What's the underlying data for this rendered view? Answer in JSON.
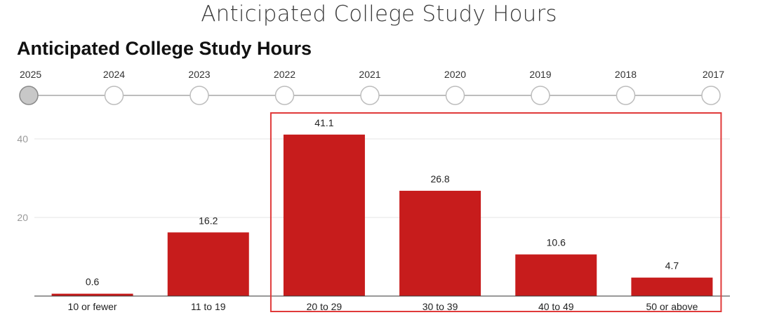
{
  "page_title": "Anticipated College Study Hours",
  "chart_title": "Anticipated College Study Hours",
  "timeline": {
    "years": [
      "2025",
      "2024",
      "2023",
      "2022",
      "2021",
      "2020",
      "2019",
      "2018",
      "2017"
    ],
    "selected_index": 0,
    "colors": {
      "selected": "#c8c8c8",
      "unselected": "#ffffff",
      "line": "#bdbdbd"
    }
  },
  "chart_data": {
    "type": "bar",
    "title": "Anticipated College Study Hours",
    "categories": [
      "10 or fewer",
      "11 to 19",
      "20 to 29",
      "30 to 39",
      "40 to 49",
      "50 or above"
    ],
    "values": [
      0.6,
      16.2,
      41.1,
      26.8,
      10.6,
      4.7
    ],
    "data_labels": [
      "0.6",
      "16.2",
      "41.1",
      "26.8",
      "10.6",
      "4.7"
    ],
    "yticks": [
      20,
      40
    ],
    "ytick_labels": [
      "20",
      "40"
    ],
    "ylim": [
      0,
      45
    ],
    "grid": true,
    "bar_color": "#c71c1c",
    "highlight": {
      "from_category": "20 to 29",
      "to_category": "50 or above",
      "color": "#e03a3a"
    }
  }
}
